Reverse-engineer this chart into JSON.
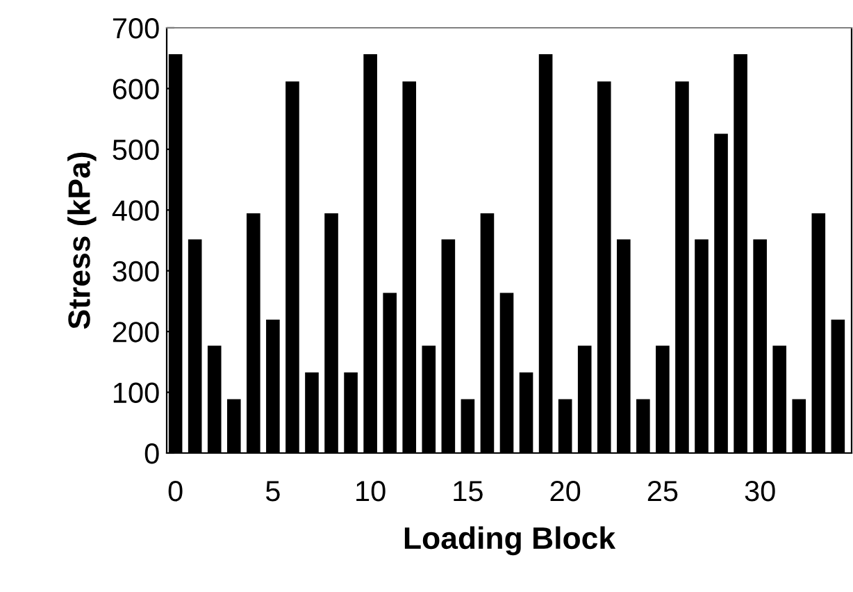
{
  "chart_data": {
    "type": "bar",
    "xlabel": "Loading Block",
    "ylabel": "Stress (kPa)",
    "x": [
      0,
      1,
      2,
      3,
      4,
      5,
      6,
      7,
      8,
      9,
      10,
      11,
      12,
      13,
      14,
      15,
      16,
      17,
      18,
      19,
      20,
      21,
      22,
      23,
      24,
      25,
      26,
      27,
      28,
      29,
      30,
      31,
      32,
      33,
      34
    ],
    "values": [
      655,
      350,
      175,
      87,
      393,
      218,
      610,
      131,
      393,
      131,
      655,
      262,
      610,
      175,
      350,
      87,
      393,
      262,
      131,
      655,
      87,
      175,
      610,
      350,
      87,
      175,
      610,
      350,
      524,
      655,
      350,
      175,
      87,
      393,
      218
    ],
    "color": "#000000",
    "xlim": [
      -0.45,
      34.7
    ],
    "xticks": [
      0,
      {
        "value": 1,
        "label": null
      },
      {
        "value": 2,
        "label": null
      },
      {
        "value": 3,
        "label": null
      },
      {
        "value": 4,
        "label": null
      },
      5,
      {
        "value": 6,
        "label": null
      },
      {
        "value": 7,
        "label": null
      },
      {
        "value": 8,
        "label": null
      },
      {
        "value": 9,
        "label": null
      },
      10,
      {
        "value": 11,
        "label": null
      },
      {
        "value": 12,
        "label": null
      },
      {
        "value": 13,
        "label": null
      },
      {
        "value": 14,
        "label": null
      },
      15,
      {
        "value": 16,
        "label": null
      },
      {
        "value": 17,
        "label": null
      },
      {
        "value": 18,
        "label": null
      },
      {
        "value": 19,
        "label": null
      },
      20,
      {
        "value": 21,
        "label": null
      },
      {
        "value": 22,
        "label": null
      },
      {
        "value": 23,
        "label": null
      },
      {
        "value": 24,
        "label": null
      },
      25,
      {
        "value": 26,
        "label": null
      },
      {
        "value": 27,
        "label": null
      },
      {
        "value": 28,
        "label": null
      },
      {
        "value": 29,
        "label": null
      },
      30,
      {
        "value": 31,
        "label": null
      },
      {
        "value": 32,
        "label": null
      },
      {
        "value": 33,
        "label": null
      },
      {
        "value": 34,
        "label": null
      }
    ],
    "ylim": [
      0,
      700
    ],
    "yticks": [
      0,
      100,
      200,
      300,
      400,
      500,
      600,
      700
    ],
    "grid": false
  }
}
